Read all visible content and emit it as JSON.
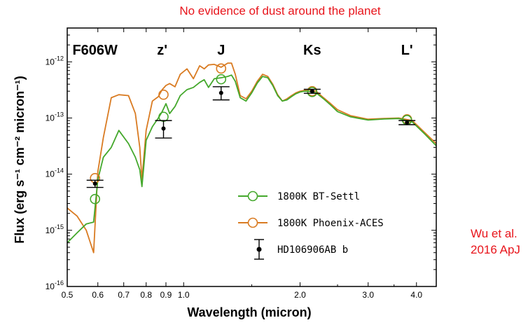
{
  "header": {
    "title": "No evidence of dust around the planet"
  },
  "citation": {
    "line1": "Wu et al.",
    "line2": "2016 ApJ"
  },
  "chart_data": {
    "type": "line",
    "xlabel": "Wavelength (micron)",
    "ylabel": "Flux (erg s⁻¹ cm⁻² micron⁻¹)",
    "xscale": "log",
    "yscale": "log",
    "xlim": [
      0.5,
      4.5
    ],
    "ylim": [
      1e-16,
      4e-12
    ],
    "x_ticks": [
      {
        "v": 0.5,
        "label": "0.5"
      },
      {
        "v": 0.6,
        "label": "0.6"
      },
      {
        "v": 0.7,
        "label": "0.7"
      },
      {
        "v": 0.8,
        "label": "0.8"
      },
      {
        "v": 0.9,
        "label": "0.9"
      },
      {
        "v": 1.0,
        "label": "1.0"
      },
      {
        "v": 2.0,
        "label": "2.0"
      },
      {
        "v": 3.0,
        "label": "3.0"
      },
      {
        "v": 4.0,
        "label": "4.0"
      }
    ],
    "y_ticks": [
      {
        "v": 1e-16,
        "base": "10",
        "exp": "-16"
      },
      {
        "v": 1e-15,
        "base": "10",
        "exp": "-15"
      },
      {
        "v": 1e-14,
        "base": "10",
        "exp": "-14"
      },
      {
        "v": 1e-13,
        "base": "10",
        "exp": "-13"
      },
      {
        "v": 1e-12,
        "base": "10",
        "exp": "-12"
      }
    ],
    "band_labels": [
      {
        "text": "F606W",
        "x": 0.59
      },
      {
        "text": "z'",
        "x": 0.88
      },
      {
        "text": "J",
        "x": 1.25
      },
      {
        "text": "Ks",
        "x": 2.15
      },
      {
        "text": "L'",
        "x": 3.78
      }
    ],
    "series": [
      {
        "name": "1800K Phoenix-ACES",
        "color": "#d97b22",
        "x": [
          0.5,
          0.53,
          0.56,
          0.585,
          0.6,
          0.62,
          0.65,
          0.68,
          0.72,
          0.75,
          0.77,
          0.78,
          0.8,
          0.83,
          0.86,
          0.88,
          0.9,
          0.92,
          0.95,
          0.98,
          1.02,
          1.06,
          1.1,
          1.13,
          1.16,
          1.2,
          1.25,
          1.3,
          1.33,
          1.36,
          1.4,
          1.45,
          1.5,
          1.55,
          1.6,
          1.65,
          1.7,
          1.75,
          1.8,
          1.85,
          1.9,
          1.95,
          2.0,
          2.05,
          2.1,
          2.2,
          2.3,
          2.4,
          2.5,
          2.7,
          3.0,
          3.3,
          3.6,
          3.9,
          4.2,
          4.5
        ],
        "y": [
          2.5e-15,
          1.8e-15,
          1e-15,
          4e-16,
          1.1e-14,
          4.5e-14,
          2.3e-13,
          2.6e-13,
          2.5e-13,
          1.2e-13,
          3e-14,
          8e-15,
          6e-14,
          2e-13,
          2.4e-13,
          3.2e-13,
          3.8e-13,
          4.1e-13,
          3.6e-13,
          6e-13,
          7.5e-13,
          5e-13,
          8.5e-13,
          7.5e-13,
          8.8e-13,
          9e-13,
          8e-13,
          9.5e-13,
          9.5e-13,
          6e-13,
          2.5e-13,
          2.2e-13,
          3e-13,
          4.5e-13,
          6e-13,
          5.5e-13,
          4e-13,
          2.6e-13,
          2e-13,
          2.2e-13,
          2.5e-13,
          2.8e-13,
          3e-13,
          3.1e-13,
          3.2e-13,
          3e-13,
          2.3e-13,
          1.8e-13,
          1.4e-13,
          1.1e-13,
          9.5e-14,
          9.8e-14,
          1e-13,
          9e-14,
          5.5e-14,
          3.5e-14
        ]
      },
      {
        "name": "1800K BT-Settl",
        "color": "#44a82c",
        "x": [
          0.5,
          0.53,
          0.56,
          0.585,
          0.6,
          0.62,
          0.65,
          0.68,
          0.72,
          0.75,
          0.77,
          0.78,
          0.8,
          0.83,
          0.86,
          0.88,
          0.9,
          0.92,
          0.95,
          0.98,
          1.02,
          1.06,
          1.1,
          1.13,
          1.16,
          1.2,
          1.25,
          1.3,
          1.33,
          1.36,
          1.4,
          1.45,
          1.5,
          1.55,
          1.6,
          1.65,
          1.7,
          1.75,
          1.8,
          1.85,
          1.9,
          1.95,
          2.0,
          2.05,
          2.1,
          2.2,
          2.3,
          2.4,
          2.5,
          2.7,
          3.0,
          3.3,
          3.6,
          3.9,
          4.2,
          4.5
        ],
        "y": [
          6e-16,
          9e-16,
          1.3e-15,
          1.4e-15,
          8e-15,
          2e-14,
          3e-14,
          6e-14,
          3.5e-14,
          2e-14,
          1.2e-14,
          6e-15,
          4e-14,
          7e-14,
          1e-13,
          1.3e-13,
          1.8e-13,
          1.2e-13,
          1.6e-13,
          2.5e-13,
          3.2e-13,
          3.5e-13,
          4.3e-13,
          4.8e-13,
          3.5e-13,
          5e-13,
          5.2e-13,
          5.5e-13,
          5.8e-13,
          4.5e-13,
          2.3e-13,
          2e-13,
          2.8e-13,
          4.2e-13,
          5.5e-13,
          5.2e-13,
          3.8e-13,
          2.5e-13,
          2e-13,
          2.1e-13,
          2.4e-13,
          2.7e-13,
          2.9e-13,
          3e-13,
          3e-13,
          2.8e-13,
          2.2e-13,
          1.7e-13,
          1.3e-13,
          1.05e-13,
          9.2e-14,
          9.6e-14,
          9.8e-14,
          8.5e-14,
          5.2e-14,
          3.2e-14
        ]
      }
    ],
    "model_photometry": [
      {
        "series": "1800K Phoenix-ACES",
        "color": "#d97b22",
        "x": [
          0.59,
          0.887,
          1.25,
          2.15,
          3.78
        ],
        "y": [
          8.5e-15,
          2.6e-13,
          7.6e-13,
          3e-13,
          9.5e-14
        ]
      },
      {
        "series": "1800K BT-Settl",
        "color": "#44a82c",
        "x": [
          0.59,
          0.887,
          1.25,
          2.15,
          3.78
        ],
        "y": [
          3.6e-15,
          1.05e-13,
          4.9e-13,
          2.9e-13,
          9.2e-14
        ]
      }
    ],
    "observations": {
      "name": "HD106906AB b",
      "x": [
        0.59,
        0.887,
        1.25,
        2.15,
        3.78
      ],
      "y": [
        6.8e-15,
        6.5e-14,
        2.8e-13,
        3e-13,
        8.3e-14
      ],
      "ylow": [
        5.8e-15,
        4.4e-14,
        2.1e-13,
        2.75e-13,
        7.6e-14
      ],
      "yhigh": [
        7.8e-15,
        9e-14,
        3.6e-13,
        3.25e-13,
        9e-14
      ]
    },
    "legend": {
      "position": "bottom-right",
      "entries": [
        {
          "label": "1800K BT-Settl",
          "marker": "open-circle",
          "color": "#44a82c"
        },
        {
          "label": "1800K Phoenix-ACES",
          "marker": "open-circle",
          "color": "#d97b22"
        },
        {
          "label": "HD106906AB b",
          "marker": "errorbar-dot",
          "color": "#000000"
        }
      ]
    }
  }
}
